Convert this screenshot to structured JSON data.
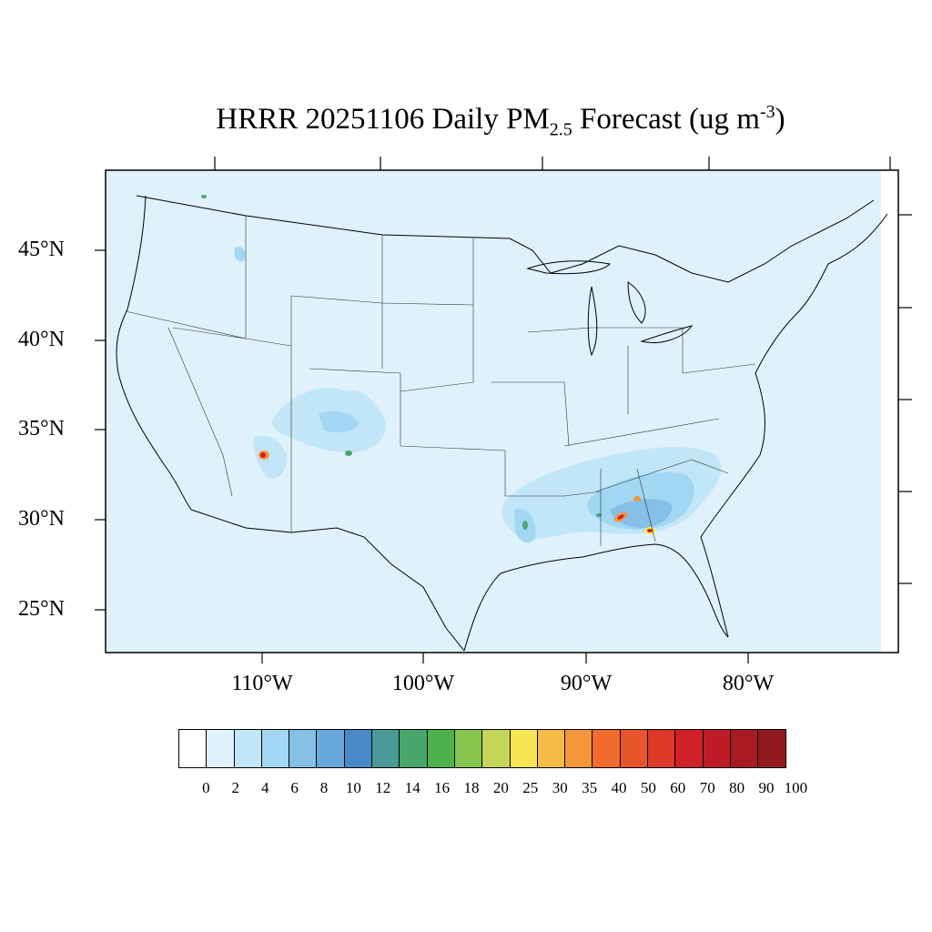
{
  "title": {
    "prefix": "HRRR 20251106 Daily PM",
    "subscript": "2.5",
    "middle": " Forecast (ug m",
    "superscript": "-3",
    "suffix": ")"
  },
  "lat_labels": [
    "45°N",
    "40°N",
    "35°N",
    "30°N",
    "25°N"
  ],
  "lon_labels": [
    "110°W",
    "100°W",
    "90°W",
    "80°W"
  ],
  "colorbar": {
    "colors": [
      "#ffffff",
      "#dff1fb",
      "#c0e6f7",
      "#a2d7f3",
      "#85c0e6",
      "#68a8dc",
      "#4a88c8",
      "#4a9a9a",
      "#48a56c",
      "#4bb349",
      "#86c54e",
      "#c4d65a",
      "#f8e655",
      "#f7bc47",
      "#f5963b",
      "#f16c2c",
      "#e8552b",
      "#dd3a29",
      "#d02029",
      "#bd1c26",
      "#a91a23",
      "#921a1f"
    ],
    "labels": [
      "0",
      "2",
      "4",
      "6",
      "8",
      "10",
      "12",
      "14",
      "16",
      "18",
      "20",
      "25",
      "30",
      "35",
      "40",
      "50",
      "60",
      "70",
      "80",
      "90",
      "100"
    ]
  },
  "map_colors": {
    "background": "#dff1fb",
    "light_blue": "#c0e6f7",
    "blue": "#a2d7f3",
    "mid_blue": "#85c0e6",
    "green": "#48a56c",
    "yellow": "#f8e655",
    "orange": "#f5963b",
    "red": "#d02029"
  }
}
